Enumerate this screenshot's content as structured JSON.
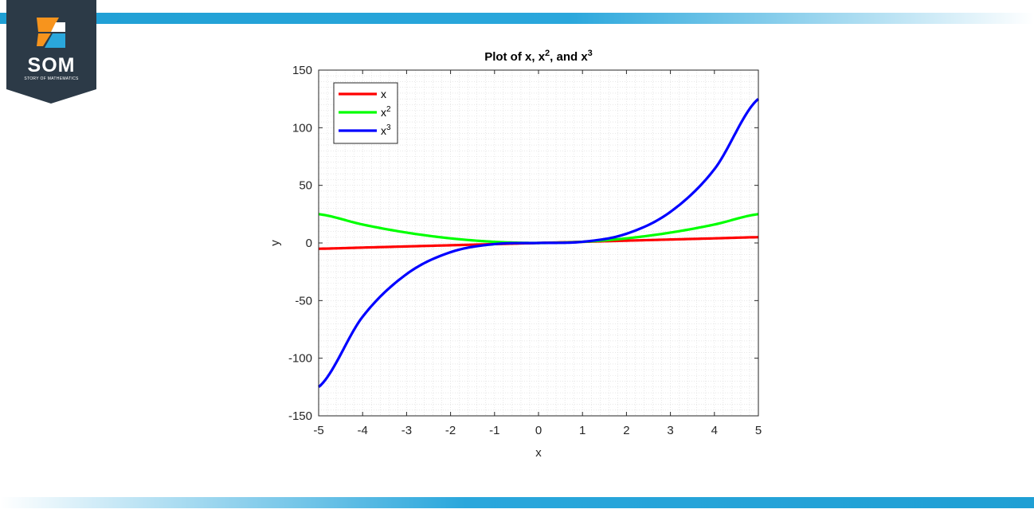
{
  "brand": {
    "name": "SOM",
    "subtitle": "STORY OF MATHEMATICS",
    "accent": "#2aa7dc",
    "logo_bg": "#2c3a47",
    "logo_orange": "#f7941d"
  },
  "chart_data": {
    "type": "line",
    "title": "Plot of x, x^2, and x^3",
    "title_parts": {
      "main": "Plot of x, x",
      "sup1": "2",
      "mid": ", and x",
      "sup2": "3"
    },
    "xlabel": "x",
    "ylabel": "y",
    "xlim": [
      -5,
      5
    ],
    "ylim": [
      -150,
      150
    ],
    "xticks": [
      -5,
      -4,
      -3,
      -2,
      -1,
      0,
      1,
      2,
      3,
      4,
      5
    ],
    "yticks": [
      -150,
      -100,
      -50,
      0,
      50,
      100,
      150
    ],
    "grid": "minor dotted",
    "legend_position": "top-left",
    "x": [
      -5,
      -4,
      -3,
      -2,
      -1,
      0,
      1,
      2,
      3,
      4,
      5
    ],
    "series": [
      {
        "name": "x",
        "label_base": "x",
        "label_sup": "",
        "color": "#ff0000",
        "values": [
          -5,
          -4,
          -3,
          -2,
          -1,
          0,
          1,
          2,
          3,
          4,
          5
        ]
      },
      {
        "name": "x^2",
        "label_base": "x",
        "label_sup": "2",
        "color": "#00ff00",
        "values": [
          25,
          16,
          9,
          4,
          1,
          0,
          1,
          4,
          9,
          16,
          25
        ]
      },
      {
        "name": "x^3",
        "label_base": "x",
        "label_sup": "3",
        "color": "#0000ff",
        "values": [
          -125,
          -64,
          -27,
          -8,
          -1,
          0,
          1,
          8,
          27,
          64,
          125
        ]
      }
    ]
  }
}
